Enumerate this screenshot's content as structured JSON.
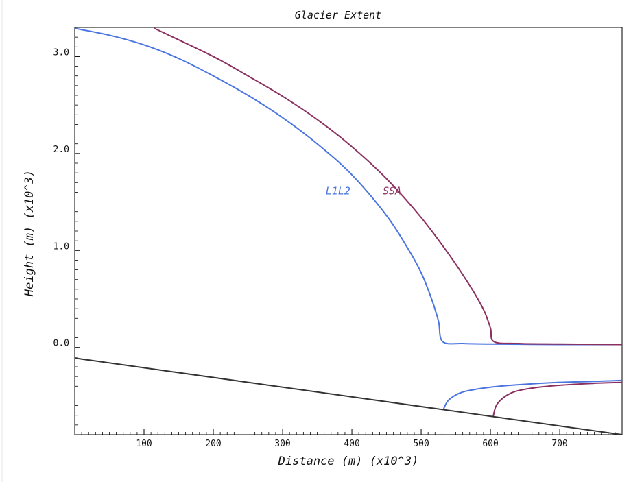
{
  "chart_data": {
    "type": "line",
    "title": "Glacier Extent",
    "xlabel": "Distance (m) (x10^3)",
    "ylabel": "Height (m) (x10^3)",
    "xlim": [
      0,
      790
    ],
    "ylim": [
      -0.9,
      3.3
    ],
    "x_ticks": [
      100,
      200,
      300,
      400,
      500,
      600,
      700
    ],
    "x_tick_labels": [
      "100",
      "200",
      "300",
      "400",
      "500",
      "600",
      "700"
    ],
    "y_ticks": [
      0.0,
      1.0,
      2.0,
      3.0
    ],
    "y_tick_labels": [
      "0.0",
      "1.0",
      "2.0",
      "3.0"
    ],
    "grid": false,
    "legend": "none",
    "series": [
      {
        "name": "L1L2",
        "color": "#4a74e0",
        "label_at": [
          380,
          1.58
        ],
        "upper": [
          [
            0,
            3.29
          ],
          [
            50,
            3.22
          ],
          [
            100,
            3.12
          ],
          [
            150,
            2.98
          ],
          [
            200,
            2.8
          ],
          [
            250,
            2.6
          ],
          [
            300,
            2.37
          ],
          [
            350,
            2.1
          ],
          [
            400,
            1.78
          ],
          [
            450,
            1.36
          ],
          [
            480,
            1.03
          ],
          [
            500,
            0.77
          ],
          [
            515,
            0.5
          ],
          [
            525,
            0.27
          ],
          [
            531,
            0.06
          ],
          [
            560,
            0.04
          ],
          [
            600,
            0.035
          ],
          [
            700,
            0.03
          ],
          [
            790,
            0.03
          ]
        ],
        "lower": [
          [
            532,
            -0.64
          ],
          [
            540,
            -0.54
          ],
          [
            560,
            -0.46
          ],
          [
            600,
            -0.41
          ],
          [
            650,
            -0.38
          ],
          [
            700,
            -0.36
          ],
          [
            750,
            -0.35
          ],
          [
            790,
            -0.34
          ]
        ]
      },
      {
        "name": "SSA",
        "color": "#8b3060",
        "label_at": [
          458,
          1.58
        ],
        "upper": [
          [
            115,
            3.29
          ],
          [
            200,
            3.0
          ],
          [
            250,
            2.8
          ],
          [
            300,
            2.59
          ],
          [
            350,
            2.35
          ],
          [
            400,
            2.07
          ],
          [
            450,
            1.74
          ],
          [
            500,
            1.34
          ],
          [
            540,
            0.96
          ],
          [
            570,
            0.64
          ],
          [
            590,
            0.39
          ],
          [
            600,
            0.2
          ],
          [
            605,
            0.06
          ],
          [
            640,
            0.04
          ],
          [
            700,
            0.035
          ],
          [
            790,
            0.03
          ]
        ],
        "lower": [
          [
            604,
            -0.71
          ],
          [
            610,
            -0.58
          ],
          [
            630,
            -0.47
          ],
          [
            660,
            -0.42
          ],
          [
            700,
            -0.39
          ],
          [
            750,
            -0.37
          ],
          [
            790,
            -0.36
          ]
        ]
      },
      {
        "name": "bed",
        "color": "#333333",
        "points": [
          [
            0,
            -0.11
          ],
          [
            790,
            -0.9
          ]
        ]
      }
    ]
  }
}
